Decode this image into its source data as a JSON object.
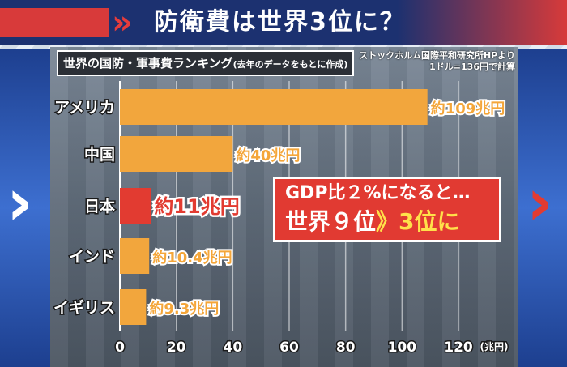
{
  "header": {
    "title": "防衛費は世界3位に？"
  },
  "chart_title": {
    "main": "世界の国防・軍事費ランキング",
    "note": "(去年のデータをもとに作成)"
  },
  "source": {
    "line1": "ストックホルム国際平和研究所HPより",
    "line2": "1ドル=136円で計算"
  },
  "callout": {
    "line1": "GDP比２%になると…",
    "line2a": "世界９位",
    "line2b": "》",
    "line2c": "3位に"
  },
  "colors": {
    "bar": "#f2a63d",
    "highlight": "#e23b31",
    "header_bg": "#1c3170",
    "accent_red": "#d83a3a"
  },
  "chart_data": {
    "type": "bar",
    "orientation": "horizontal",
    "categories": [
      "アメリカ",
      "中国",
      "日本",
      "インド",
      "イギリス"
    ],
    "values": [
      109,
      40,
      11,
      10.4,
      9.3
    ],
    "value_labels": [
      "約109兆円",
      "約40兆円",
      "約11兆円",
      "約10.4兆円",
      "約9.3兆円"
    ],
    "highlight_index": 2,
    "xlim": [
      0,
      120
    ],
    "xticks": [
      "0",
      "20",
      "40",
      "60",
      "80",
      "100",
      "120"
    ],
    "unit_label": "(兆円)",
    "grid": true
  }
}
